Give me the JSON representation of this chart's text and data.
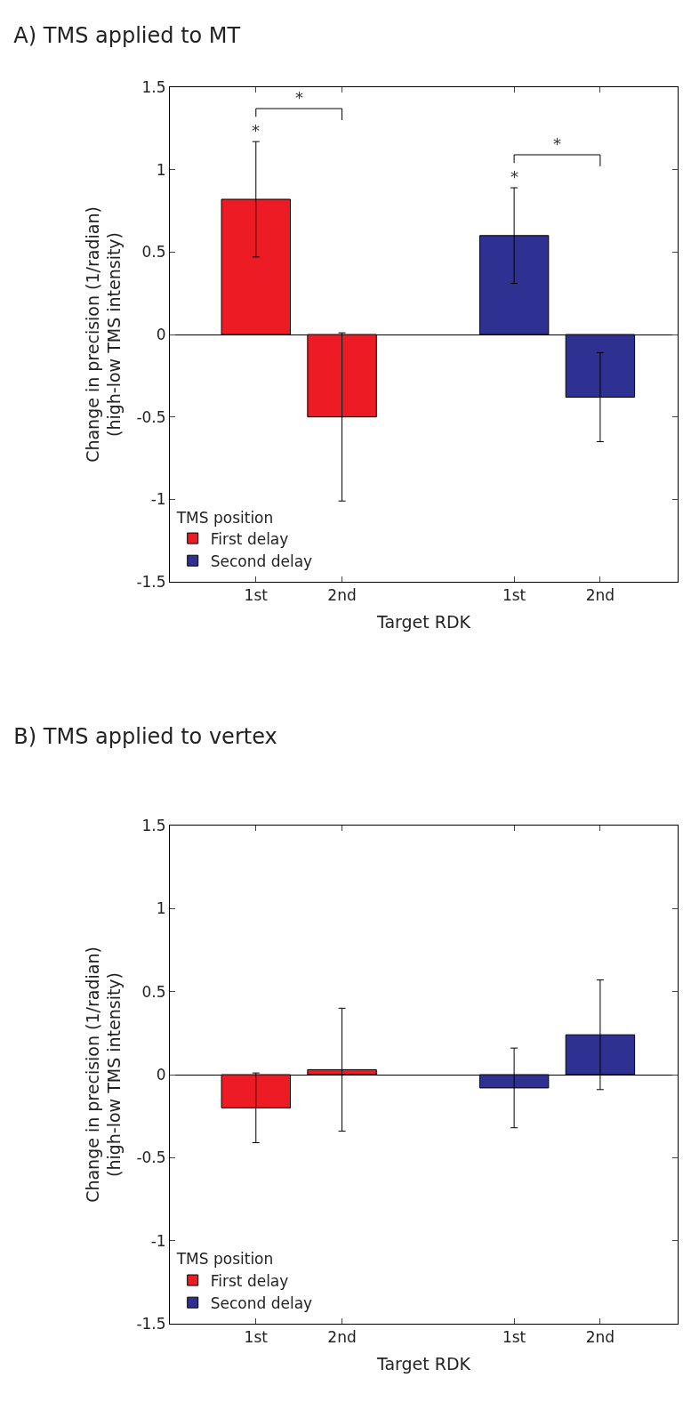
{
  "chart_data": [
    {
      "type": "bar",
      "title": "A) TMS applied to MT",
      "xlabel": "Target RDK",
      "ylabel": "Change in precision (1/radian)\n(high-low TMS intensity)",
      "legend_title": "TMS position",
      "categories": [
        "1st",
        "2nd",
        null,
        "1st",
        "2nd"
      ],
      "series": [
        {
          "name": "First delay",
          "color": "#ed1c24",
          "values": [
            0.82,
            -0.5,
            null,
            null,
            null
          ],
          "errors": [
            0.35,
            0.51,
            null,
            null,
            null
          ]
        },
        {
          "name": "Second delay",
          "color": "#2e3192",
          "values": [
            null,
            null,
            null,
            0.6,
            -0.38
          ],
          "errors": [
            null,
            null,
            null,
            0.29,
            0.27
          ]
        }
      ],
      "ylim": [
        -1.5,
        1.5
      ],
      "yticks": [
        -1.5,
        -1,
        -0.5,
        0,
        0.5,
        1,
        1.5
      ],
      "legend": "bottom left",
      "annotations": [
        "*",
        "*",
        "*",
        "*"
      ]
    },
    {
      "type": "bar",
      "title": "B) TMS applied to vertex",
      "xlabel": "Target RDK",
      "ylabel": "Change in precision (1/radian)\n(high-low TMS intensity)",
      "legend_title": "TMS position",
      "categories": [
        "1st",
        "2nd",
        null,
        "1st",
        "2nd"
      ],
      "series": [
        {
          "name": "First delay",
          "color": "#ed1c24",
          "values": [
            -0.2,
            0.03,
            null,
            null,
            null
          ],
          "errors": [
            0.21,
            0.37,
            null,
            null,
            null
          ]
        },
        {
          "name": "Second delay",
          "color": "#2e3192",
          "values": [
            null,
            null,
            null,
            -0.08,
            0.24
          ],
          "errors": [
            null,
            null,
            null,
            0.24,
            0.33
          ]
        }
      ],
      "ylim": [
        -1.5,
        1.5
      ],
      "yticks": [
        -1.5,
        -1,
        -0.5,
        0,
        0.5,
        1,
        1.5
      ],
      "legend": "bottom left"
    }
  ]
}
